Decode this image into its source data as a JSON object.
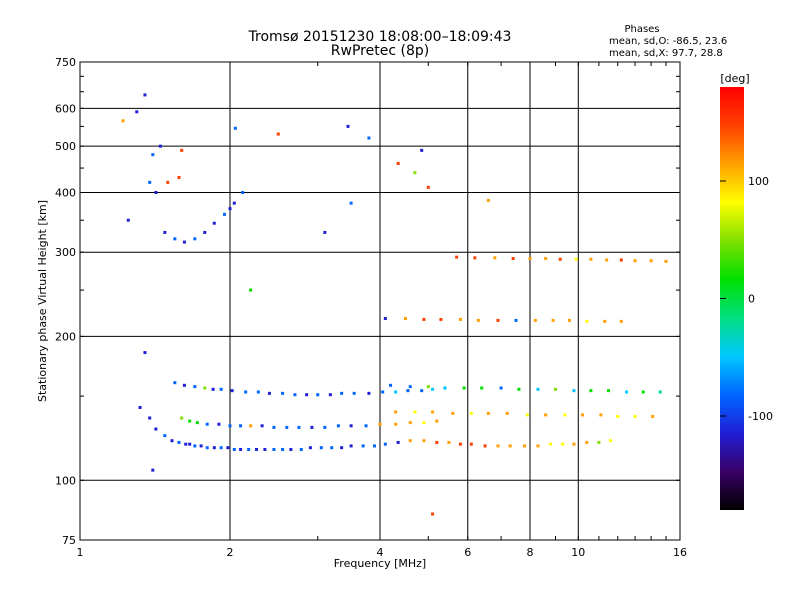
{
  "chart_data": {
    "type": "scatter",
    "title": "Tromsø 20151230 18:08:00–18:09:43",
    "subtitle": "RwPretec (8p)",
    "xlabel": "Frequency [MHz]",
    "ylabel": "Stationary phase Virtual Height [km]",
    "xscale": "log",
    "yscale": "log",
    "xlim": [
      1,
      16
    ],
    "ylim": [
      75,
      750
    ],
    "xticks": [
      1,
      2,
      4,
      6,
      8,
      10,
      16
    ],
    "xtick_labels": [
      "1",
      "2",
      "4",
      "6",
      "8",
      "10",
      "16"
    ],
    "yticks": [
      75,
      100,
      200,
      300,
      400,
      500,
      600,
      750
    ],
    "ytick_labels": [
      "75",
      "100",
      "200",
      "300",
      "400",
      "500",
      "600",
      "750"
    ],
    "grid": true,
    "colorbar": {
      "label": "[deg]",
      "range": [
        -180,
        180
      ],
      "ticks": [
        100,
        0,
        -100
      ],
      "tick_labels": [
        "100",
        "0",
        "-100"
      ],
      "colors": [
        "#000000",
        "#3a0066",
        "#1f1fd6",
        "#0066ff",
        "#00c8ff",
        "#00e080",
        "#00e000",
        "#80e000",
        "#ffff00",
        "#ffa000",
        "#ff4000",
        "#ff0000"
      ]
    },
    "stats": {
      "heading": "Phases",
      "line_o": "mean, sd,O: -86.5, 23.6",
      "line_x": "mean, sd,X:  97.7, 28.8"
    },
    "series": [
      {
        "x": [
          1.32,
          1.38,
          1.42,
          1.48,
          1.53,
          1.58,
          1.63,
          1.66,
          1.7,
          1.75,
          1.8,
          1.86,
          1.92,
          1.98,
          2.04,
          2.1,
          2.18,
          2.26,
          2.35,
          2.45,
          2.55,
          2.65,
          2.78,
          2.9,
          3.05,
          3.2,
          3.35,
          3.5,
          3.7,
          3.9,
          4.1,
          4.35
        ],
        "y": [
          142,
          135,
          128,
          124,
          121,
          120,
          119,
          119,
          118,
          118,
          117,
          117,
          117,
          117,
          116,
          116,
          116,
          116,
          116,
          116,
          116,
          116,
          116,
          117,
          117,
          117,
          117,
          118,
          118,
          118,
          119,
          120
        ],
        "phase": [
          -100,
          -105,
          -110,
          -95,
          -100,
          -90,
          -100,
          -110,
          -95,
          -100,
          -85,
          -100,
          -95,
          -100,
          -90,
          -100,
          -95,
          -100,
          -105,
          -90,
          -95,
          -100,
          -85,
          -100,
          -90,
          -95,
          -100,
          -110,
          -95,
          -80,
          -90,
          -100
        ]
      },
      {
        "x": [
          1.6,
          1.66,
          1.72,
          1.8,
          1.9,
          2.0,
          2.1,
          2.2,
          2.32,
          2.45,
          2.6,
          2.75,
          2.92,
          3.1,
          3.3,
          3.5,
          3.75,
          4.0,
          4.3,
          4.6,
          4.9,
          5.2
        ],
        "y": [
          135,
          133,
          132,
          131,
          131,
          130,
          130,
          130,
          130,
          129,
          129,
          129,
          129,
          129,
          130,
          130,
          130,
          131,
          131,
          132,
          132,
          133
        ],
        "phase": [
          40,
          30,
          20,
          -90,
          -100,
          -85,
          -95,
          120,
          -100,
          -90,
          -80,
          -95,
          -100,
          -90,
          -85,
          -100,
          -95,
          110,
          130,
          100,
          90,
          120
        ]
      },
      {
        "x": [
          1.55,
          1.62,
          1.7,
          1.78,
          1.85,
          1.92,
          2.02,
          2.15,
          2.28,
          2.4,
          2.55,
          2.7,
          2.85,
          3.0,
          3.18,
          3.35,
          3.55,
          3.8,
          4.05,
          4.3,
          4.55,
          4.85,
          5.1,
          5.4
        ],
        "y": [
          160,
          158,
          157,
          156,
          155,
          155,
          154,
          153,
          153,
          152,
          152,
          151,
          151,
          151,
          151,
          152,
          152,
          152,
          153,
          153,
          154,
          154,
          155,
          156
        ],
        "phase": [
          -95,
          -100,
          -90,
          60,
          -100,
          -85,
          -105,
          -95,
          -90,
          -100,
          -80,
          -95,
          -110,
          -90,
          -100,
          -95,
          -85,
          -100,
          -90,
          -60,
          -70,
          -80,
          -65,
          -75
        ]
      },
      {
        "x": [
          1.48,
          1.55,
          1.62,
          1.7,
          1.78,
          1.86,
          1.95,
          2.04,
          2.12
        ],
        "y": [
          330,
          320,
          315,
          320,
          330,
          345,
          360,
          380,
          400
        ],
        "phase": [
          -100,
          -95,
          -110,
          -90,
          -100,
          -105,
          -95,
          -100,
          -90
        ]
      },
      {
        "x": [
          4.6,
          4.9,
          5.2,
          5.5,
          5.8,
          6.1,
          6.5,
          6.9,
          7.3,
          7.8,
          8.3,
          8.8,
          9.3,
          9.8,
          10.4,
          11.0,
          11.6
        ],
        "y": [
          121,
          121,
          120,
          120,
          119,
          119,
          118,
          118,
          118,
          118,
          118,
          119,
          119,
          119,
          120,
          120,
          121
        ],
        "phase": [
          120,
          130,
          140,
          110,
          150,
          160,
          140,
          120,
          100,
          130,
          110,
          90,
          80,
          120,
          100,
          60,
          90
        ]
      },
      {
        "x": [
          5.7,
          6.2,
          6.8,
          7.4,
          8.0,
          8.6,
          9.2,
          9.9,
          10.6,
          11.4,
          12.2,
          13.0,
          14.0,
          15.0
        ],
        "y": [
          293,
          292,
          292,
          291,
          291,
          291,
          290,
          290,
          290,
          289,
          289,
          288,
          288,
          287
        ],
        "phase": [
          150,
          140,
          120,
          160,
          130,
          110,
          150,
          90,
          120,
          100,
          140,
          100,
          120,
          110
        ]
      },
      {
        "x": [
          4.1,
          4.5,
          4.9,
          5.3,
          5.8,
          6.3,
          6.9,
          7.5,
          8.2,
          8.9,
          9.6,
          10.4,
          11.3,
          12.2
        ],
        "y": [
          218,
          218,
          217,
          217,
          217,
          216,
          216,
          216,
          216,
          216,
          216,
          215,
          215,
          215
        ],
        "phase": [
          -100,
          120,
          140,
          150,
          130,
          110,
          140,
          -90,
          120,
          100,
          130,
          90,
          110,
          100
        ]
      },
      {
        "x": [
          4.2,
          4.6,
          5.0,
          5.4,
          5.9,
          6.4,
          7.0,
          7.6,
          8.3,
          9.0,
          9.8,
          10.6,
          11.5,
          12.5,
          13.5,
          14.6
        ],
        "y": [
          158,
          157,
          157,
          156,
          156,
          156,
          156,
          155,
          155,
          155,
          154,
          154,
          154,
          153,
          153,
          153
        ],
        "phase": [
          -90,
          -80,
          50,
          -60,
          30,
          20,
          -70,
          10,
          -50,
          40,
          -60,
          20,
          10,
          -40,
          30,
          -20
        ]
      },
      {
        "x": [
          4.3,
          4.7,
          5.1,
          5.6,
          6.1,
          6.6,
          7.2,
          7.9,
          8.6,
          9.4,
          10.2,
          11.1,
          12.0,
          13.0,
          14.1
        ],
        "y": [
          139,
          139,
          139,
          138,
          138,
          138,
          138,
          137,
          137,
          137,
          137,
          137,
          136,
          136,
          136
        ],
        "phase": [
          100,
          90,
          110,
          120,
          80,
          100,
          130,
          90,
          110,
          80,
          100,
          120,
          70,
          90,
          110
        ]
      },
      {
        "x": [
          1.22,
          1.3,
          1.35,
          1.4,
          1.45,
          1.38,
          1.42,
          1.5,
          1.25,
          2.0,
          2.05,
          2.2,
          2.5,
          3.1,
          3.45,
          3.5,
          3.8,
          4.35,
          4.7,
          4.85,
          5.0,
          5.1,
          6.6,
          1.6,
          1.58,
          1.35,
          1.4
        ],
        "y": [
          565,
          590,
          640,
          480,
          500,
          420,
          400,
          420,
          350,
          370,
          545,
          250,
          530,
          330,
          550,
          380,
          520,
          460,
          440,
          490,
          410,
          85,
          385,
          490,
          430,
          185,
          105
        ],
        "phase": [
          100,
          -100,
          -100,
          -90,
          -100,
          -95,
          -100,
          150,
          -100,
          -100,
          -90,
          20,
          150,
          -100,
          -100,
          -95,
          -90,
          150,
          60,
          -100,
          160,
          150,
          120,
          140,
          160,
          -100,
          -100
        ]
      }
    ]
  }
}
